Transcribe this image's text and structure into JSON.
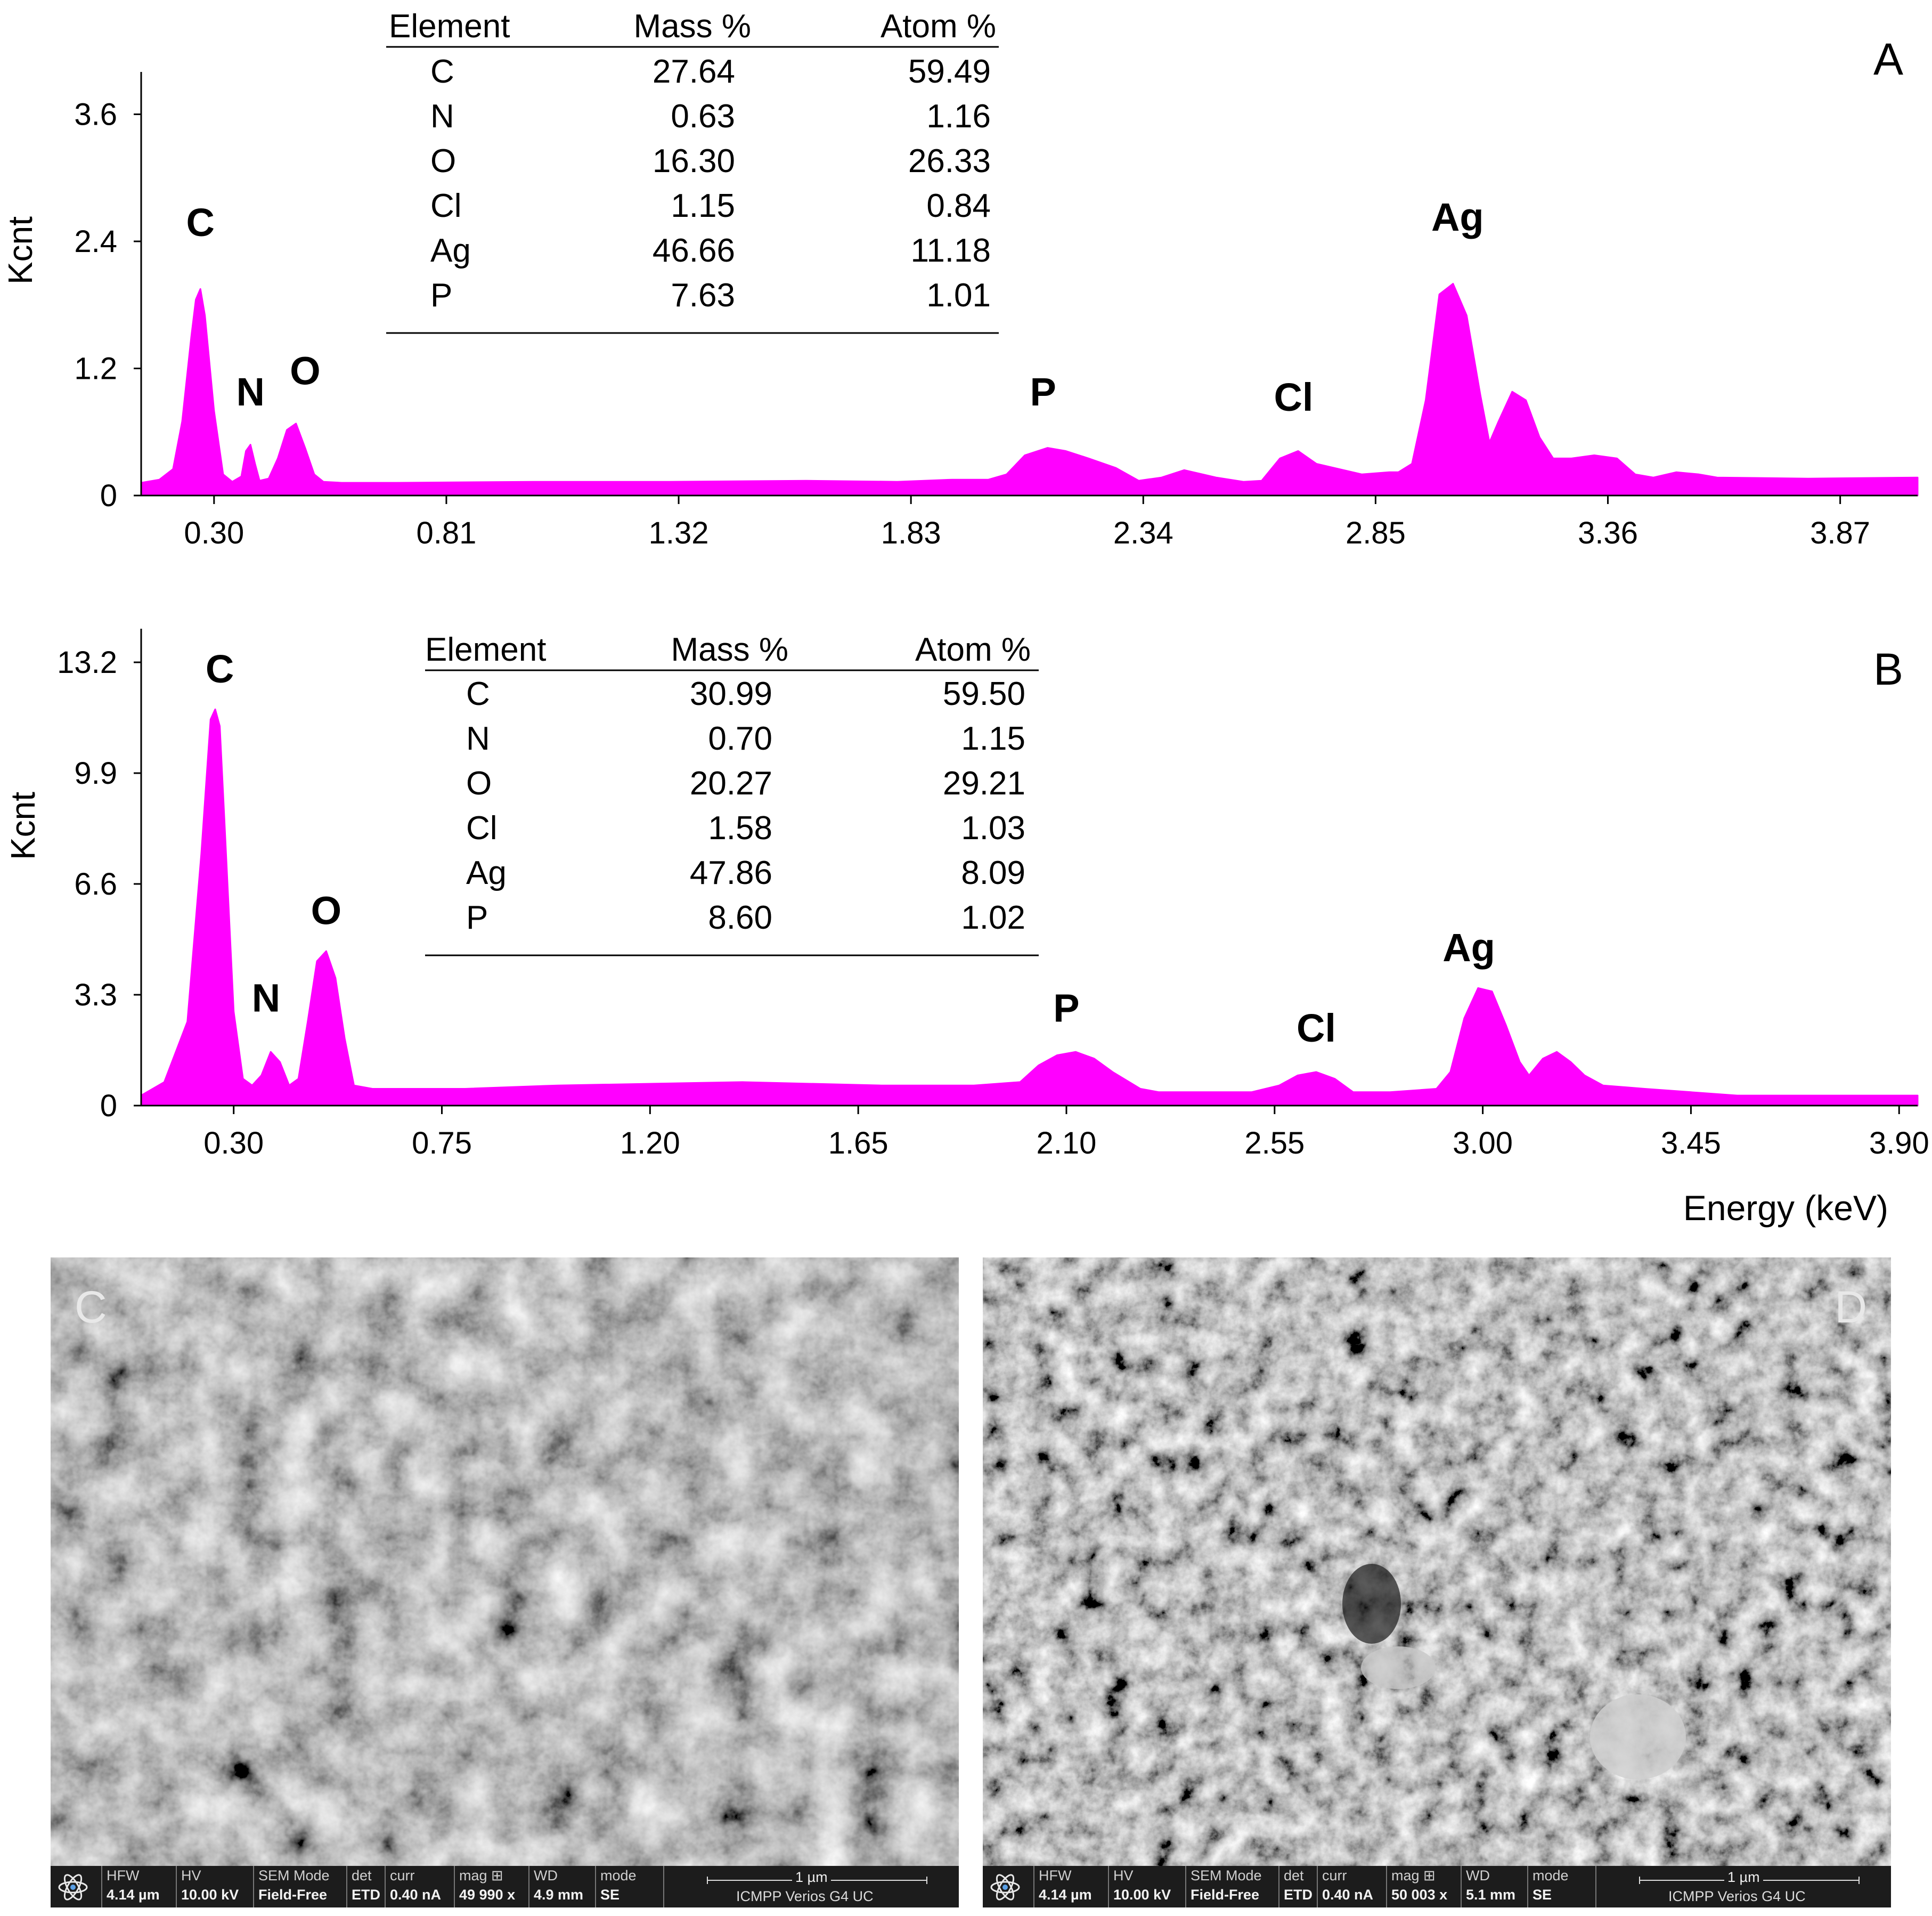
{
  "chart_data": [
    {
      "type": "area",
      "panel_label": "A",
      "ylabel": "Kcnt",
      "xlabel": "",
      "xlim": [
        0.14,
        4.04
      ],
      "ylim": [
        0,
        4.0
      ],
      "x_ticks": [
        "0.30",
        "0.81",
        "1.32",
        "1.83",
        "2.34",
        "2.85",
        "3.36",
        "3.87"
      ],
      "x_tick_values": [
        0.3,
        0.81,
        1.32,
        1.83,
        2.34,
        2.85,
        3.36,
        3.87
      ],
      "y_ticks": [
        "0",
        "1.2",
        "2.4",
        "3.6"
      ],
      "y_tick_values": [
        0,
        1.2,
        2.4,
        3.6
      ],
      "color": "#ff00ff",
      "spectrum": {
        "x": [
          0.14,
          0.18,
          0.21,
          0.23,
          0.25,
          0.26,
          0.27,
          0.28,
          0.3,
          0.32,
          0.34,
          0.36,
          0.37,
          0.38,
          0.39,
          0.4,
          0.42,
          0.44,
          0.46,
          0.48,
          0.5,
          0.52,
          0.54,
          0.58,
          0.7,
          1.0,
          1.3,
          1.6,
          1.8,
          1.92,
          2.0,
          2.04,
          2.08,
          2.13,
          2.17,
          2.22,
          2.28,
          2.33,
          2.38,
          2.43,
          2.5,
          2.56,
          2.6,
          2.64,
          2.68,
          2.72,
          2.82,
          2.88,
          2.9,
          2.93,
          2.96,
          2.99,
          3.02,
          3.05,
          3.08,
          3.1,
          3.12,
          3.15,
          3.18,
          3.21,
          3.24,
          3.28,
          3.33,
          3.38,
          3.42,
          3.46,
          3.51,
          3.56,
          3.6,
          3.8,
          4.04
        ],
        "y": [
          0.12,
          0.15,
          0.25,
          0.7,
          1.5,
          1.85,
          1.95,
          1.7,
          0.8,
          0.2,
          0.13,
          0.18,
          0.42,
          0.48,
          0.3,
          0.14,
          0.16,
          0.35,
          0.62,
          0.68,
          0.45,
          0.2,
          0.13,
          0.12,
          0.12,
          0.13,
          0.13,
          0.14,
          0.13,
          0.15,
          0.15,
          0.2,
          0.38,
          0.45,
          0.42,
          0.35,
          0.26,
          0.14,
          0.17,
          0.24,
          0.17,
          0.13,
          0.14,
          0.35,
          0.42,
          0.3,
          0.2,
          0.22,
          0.22,
          0.3,
          0.9,
          1.9,
          2.0,
          1.7,
          0.95,
          0.5,
          0.7,
          0.98,
          0.9,
          0.55,
          0.35,
          0.35,
          0.38,
          0.35,
          0.2,
          0.17,
          0.22,
          0.2,
          0.17,
          0.16,
          0.17
        ]
      },
      "peak_labels": [
        {
          "text": "C",
          "x": 0.27,
          "y": 2.45
        },
        {
          "text": "N",
          "x": 0.38,
          "y": 0.85
        },
        {
          "text": "O",
          "x": 0.5,
          "y": 1.05
        },
        {
          "text": "P",
          "x": 2.12,
          "y": 0.85
        },
        {
          "text": "Cl",
          "x": 2.67,
          "y": 0.8
        },
        {
          "text": "Ag",
          "x": 3.03,
          "y": 2.5
        }
      ],
      "table": {
        "headers": [
          "Element",
          "Mass %",
          "Atom %"
        ],
        "rows": [
          [
            "C",
            "27.64",
            "59.49"
          ],
          [
            "N",
            "0.63",
            "1.16"
          ],
          [
            "O",
            "16.30",
            "26.33"
          ],
          [
            "Cl",
            "1.15",
            "0.84"
          ],
          [
            "Ag",
            "46.66",
            "11.18"
          ],
          [
            "P",
            "7.63",
            "1.01"
          ]
        ]
      }
    },
    {
      "type": "area",
      "panel_label": "B",
      "ylabel": "Kcnt",
      "xlabel": "Energy (keV)",
      "xlim": [
        0.1,
        3.94
      ],
      "ylim": [
        0,
        14.2
      ],
      "x_ticks": [
        "0.30",
        "0.75",
        "1.20",
        "1.65",
        "2.10",
        "2.55",
        "3.00",
        "3.45",
        "3.90"
      ],
      "x_tick_values": [
        0.3,
        0.75,
        1.2,
        1.65,
        2.1,
        2.55,
        3.0,
        3.45,
        3.9
      ],
      "y_ticks": [
        "0",
        "3.3",
        "6.6",
        "9.9",
        "13.2"
      ],
      "y_tick_values": [
        0,
        3.3,
        6.6,
        9.9,
        13.2
      ],
      "color": "#ff00ff",
      "spectrum": {
        "x": [
          0.1,
          0.15,
          0.2,
          0.23,
          0.25,
          0.26,
          0.27,
          0.28,
          0.3,
          0.32,
          0.34,
          0.36,
          0.38,
          0.4,
          0.42,
          0.44,
          0.46,
          0.48,
          0.5,
          0.52,
          0.54,
          0.56,
          0.6,
          0.8,
          1.0,
          1.4,
          1.7,
          1.9,
          2.0,
          2.04,
          2.08,
          2.12,
          2.16,
          2.2,
          2.26,
          2.3,
          2.5,
          2.56,
          2.6,
          2.64,
          2.68,
          2.72,
          2.8,
          2.9,
          2.93,
          2.96,
          2.99,
          3.02,
          3.05,
          3.08,
          3.1,
          3.13,
          3.16,
          3.19,
          3.22,
          3.26,
          3.35,
          3.45,
          3.55,
          3.7,
          3.94
        ],
        "y": [
          0.3,
          0.7,
          2.5,
          7.5,
          11.5,
          11.8,
          11.3,
          8.5,
          2.8,
          0.8,
          0.6,
          0.9,
          1.6,
          1.3,
          0.6,
          0.8,
          2.5,
          4.3,
          4.6,
          3.8,
          2.0,
          0.6,
          0.5,
          0.5,
          0.6,
          0.7,
          0.6,
          0.6,
          0.7,
          1.2,
          1.5,
          1.6,
          1.4,
          1.0,
          0.5,
          0.4,
          0.4,
          0.6,
          0.9,
          1.0,
          0.8,
          0.4,
          0.4,
          0.5,
          1.0,
          2.6,
          3.5,
          3.4,
          2.4,
          1.3,
          0.9,
          1.4,
          1.6,
          1.3,
          0.9,
          0.6,
          0.5,
          0.4,
          0.3,
          0.3,
          0.3
        ]
      },
      "peak_labels": [
        {
          "text": "C",
          "x": 0.27,
          "y": 12.6
        },
        {
          "text": "N",
          "x": 0.37,
          "y": 2.8
        },
        {
          "text": "O",
          "x": 0.5,
          "y": 5.4
        },
        {
          "text": "P",
          "x": 2.1,
          "y": 2.5
        },
        {
          "text": "Cl",
          "x": 2.64,
          "y": 1.9
        },
        {
          "text": "Ag",
          "x": 2.97,
          "y": 4.3
        }
      ],
      "table": {
        "headers": [
          "Element",
          "Mass %",
          "Atom %"
        ],
        "rows": [
          [
            "C",
            "30.99",
            "59.50"
          ],
          [
            "N",
            "0.70",
            "1.15"
          ],
          [
            "O",
            "20.27",
            "29.21"
          ],
          [
            "Cl",
            "1.58",
            "1.03"
          ],
          [
            "Ag",
            "47.86",
            "8.09"
          ],
          [
            "P",
            "8.60",
            "1.02"
          ]
        ]
      }
    }
  ],
  "sem_images": [
    {
      "label": "C",
      "logo_icon": "atom-icon",
      "fields": [
        {
          "header": "HFW",
          "value": "4.14 µm"
        },
        {
          "header": "HV",
          "value": "10.00 kV"
        },
        {
          "header": "SEM Mode",
          "value": "Field-Free"
        },
        {
          "header": "det",
          "value": "ETD"
        },
        {
          "header": "curr",
          "value": "0.40 nA"
        },
        {
          "header": "mag ⊞",
          "value": "49 990 x"
        },
        {
          "header": "WD",
          "value": "4.9 mm"
        },
        {
          "header": "mode",
          "value": "SE"
        }
      ],
      "scale_bar": "1 µm",
      "instrument": "ICMPP Verios G4 UC"
    },
    {
      "label": "D",
      "logo_icon": "atom-icon",
      "fields": [
        {
          "header": "HFW",
          "value": "4.14 µm"
        },
        {
          "header": "HV",
          "value": "10.00 kV"
        },
        {
          "header": "SEM Mode",
          "value": "Field-Free"
        },
        {
          "header": "det",
          "value": "ETD"
        },
        {
          "header": "curr",
          "value": "0.40 nA"
        },
        {
          "header": "mag ⊞",
          "value": "50 003 x"
        },
        {
          "header": "WD",
          "value": "5.1 mm"
        },
        {
          "header": "mode",
          "value": "SE"
        }
      ],
      "scale_bar": "1 µm",
      "instrument": "ICMPP Verios G4 UC"
    }
  ]
}
